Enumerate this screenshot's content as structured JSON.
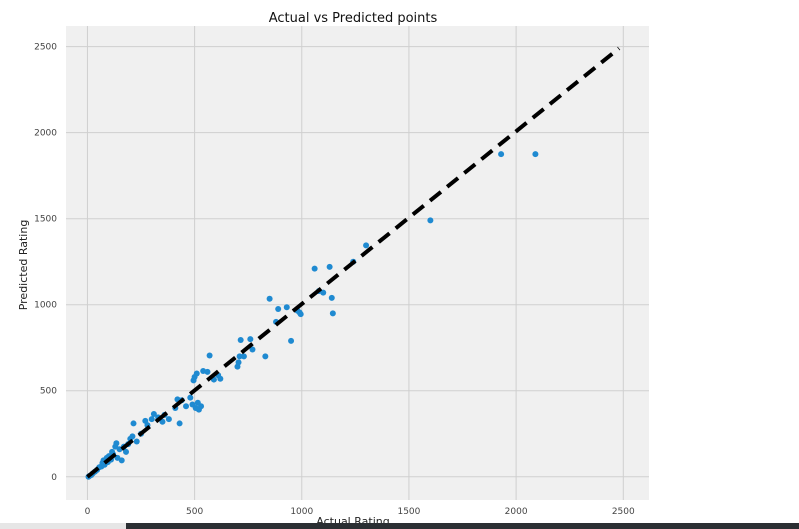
{
  "chart_data": {
    "type": "scatter",
    "title": "Actual vs Predicted points",
    "xlabel": "Actual Rating",
    "ylabel": "Predicted Rating",
    "xlim": [
      -100,
      2620
    ],
    "ylim": [
      -135,
      2620
    ],
    "xticks": [
      0,
      500,
      1000,
      1500,
      2000,
      2500
    ],
    "yticks": [
      0,
      500,
      1000,
      1500,
      2000,
      2500
    ],
    "grid": true,
    "point_color": "#1f8ad1",
    "background_color": "#f0f0f0",
    "grid_color": "#cfcfcf",
    "reference_line": {
      "style": "dashed",
      "color": "#000000",
      "from": [
        0,
        0
      ],
      "to": [
        2480,
        2490
      ]
    },
    "points": [
      [
        5,
        0
      ],
      [
        10,
        5
      ],
      [
        18,
        10
      ],
      [
        25,
        20
      ],
      [
        35,
        30
      ],
      [
        45,
        40
      ],
      [
        55,
        55
      ],
      [
        65,
        60
      ],
      [
        70,
        80
      ],
      [
        75,
        95
      ],
      [
        80,
        70
      ],
      [
        90,
        110
      ],
      [
        95,
        85
      ],
      [
        100,
        120
      ],
      [
        110,
        100
      ],
      [
        115,
        145
      ],
      [
        120,
        130
      ],
      [
        130,
        175
      ],
      [
        135,
        195
      ],
      [
        140,
        110
      ],
      [
        150,
        160
      ],
      [
        160,
        95
      ],
      [
        170,
        175
      ],
      [
        180,
        145
      ],
      [
        190,
        190
      ],
      [
        200,
        220
      ],
      [
        210,
        235
      ],
      [
        215,
        310
      ],
      [
        230,
        205
      ],
      [
        250,
        250
      ],
      [
        270,
        325
      ],
      [
        280,
        300
      ],
      [
        300,
        335
      ],
      [
        310,
        365
      ],
      [
        330,
        345
      ],
      [
        350,
        320
      ],
      [
        360,
        360
      ],
      [
        380,
        335
      ],
      [
        410,
        400
      ],
      [
        420,
        450
      ],
      [
        430,
        310
      ],
      [
        440,
        445
      ],
      [
        460,
        410
      ],
      [
        480,
        460
      ],
      [
        490,
        420
      ],
      [
        495,
        560
      ],
      [
        500,
        580
      ],
      [
        505,
        400
      ],
      [
        510,
        600
      ],
      [
        515,
        430
      ],
      [
        520,
        390
      ],
      [
        530,
        410
      ],
      [
        540,
        615
      ],
      [
        560,
        610
      ],
      [
        570,
        705
      ],
      [
        590,
        565
      ],
      [
        610,
        590
      ],
      [
        620,
        570
      ],
      [
        700,
        640
      ],
      [
        705,
        665
      ],
      [
        710,
        700
      ],
      [
        715,
        795
      ],
      [
        730,
        700
      ],
      [
        760,
        800
      ],
      [
        770,
        740
      ],
      [
        830,
        700
      ],
      [
        850,
        1035
      ],
      [
        880,
        900
      ],
      [
        890,
        975
      ],
      [
        930,
        985
      ],
      [
        950,
        790
      ],
      [
        980,
        965
      ],
      [
        990,
        955
      ],
      [
        995,
        945
      ],
      [
        1060,
        1210
      ],
      [
        1080,
        1080
      ],
      [
        1100,
        1070
      ],
      [
        1130,
        1220
      ],
      [
        1140,
        1040
      ],
      [
        1145,
        950
      ],
      [
        1240,
        1250
      ],
      [
        1300,
        1345
      ],
      [
        1600,
        1490
      ],
      [
        1930,
        1875
      ],
      [
        2090,
        1875
      ]
    ]
  }
}
